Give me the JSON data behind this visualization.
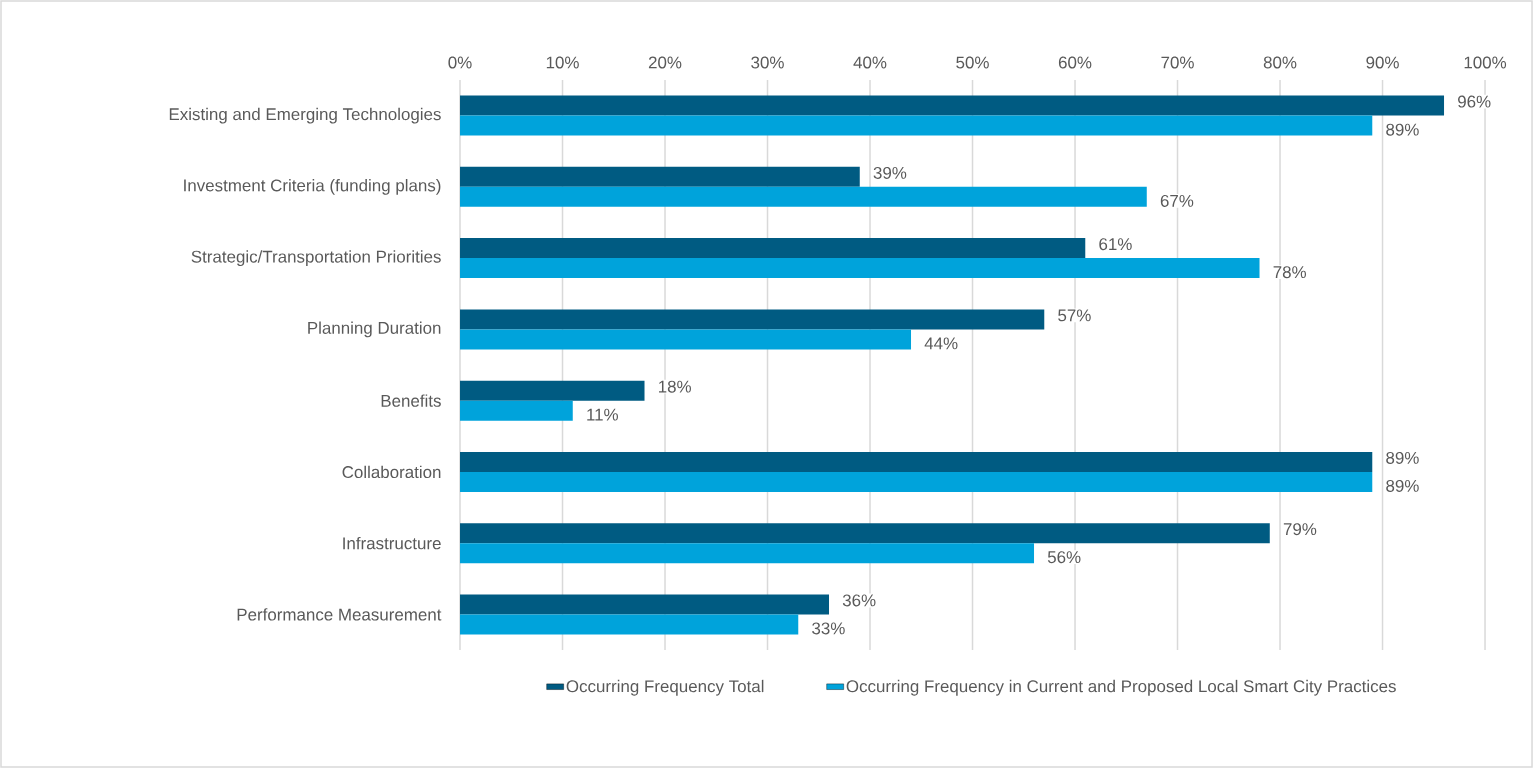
{
  "chart_data": {
    "type": "bar",
    "orientation": "horizontal",
    "categories": [
      "Existing and Emerging Technologies",
      "Investment Criteria (funding plans)",
      "Strategic/Transportation Priorities",
      "Planning Duration",
      "Benefits",
      "Collaboration",
      "Infrastructure",
      "Performance Measurement"
    ],
    "series": [
      {
        "name": "Occurring Frequency Total",
        "color": "#005b82",
        "values": [
          96,
          39,
          61,
          57,
          18,
          89,
          79,
          36
        ],
        "value_labels": [
          "96%",
          "39%",
          "61%",
          "57%",
          "18%",
          "89%",
          "79%",
          "36%"
        ]
      },
      {
        "name": "Occurring Frequency in Current and Proposed Local Smart City Practices",
        "color": "#00a3db",
        "values": [
          89,
          67,
          78,
          44,
          11,
          89,
          56,
          33
        ],
        "value_labels": [
          "89%",
          "67%",
          "78%",
          "44%",
          "11%",
          "89%",
          "56%",
          "33%"
        ]
      }
    ],
    "xlim": [
      0,
      100
    ],
    "xticks": [
      {
        "value": 0,
        "label": "0%"
      },
      {
        "value": 10,
        "label": "10%"
      },
      {
        "value": 20,
        "label": "20%"
      },
      {
        "value": 30,
        "label": "30%"
      },
      {
        "value": 40,
        "label": "40%"
      },
      {
        "value": 50,
        "label": "50%"
      },
      {
        "value": 60,
        "label": "60%"
      },
      {
        "value": 70,
        "label": "70%"
      },
      {
        "value": 80,
        "label": "80%"
      },
      {
        "value": 90,
        "label": "90%"
      },
      {
        "value": 100,
        "label": "100%"
      }
    ],
    "grid": "x",
    "legend": "bottom"
  }
}
